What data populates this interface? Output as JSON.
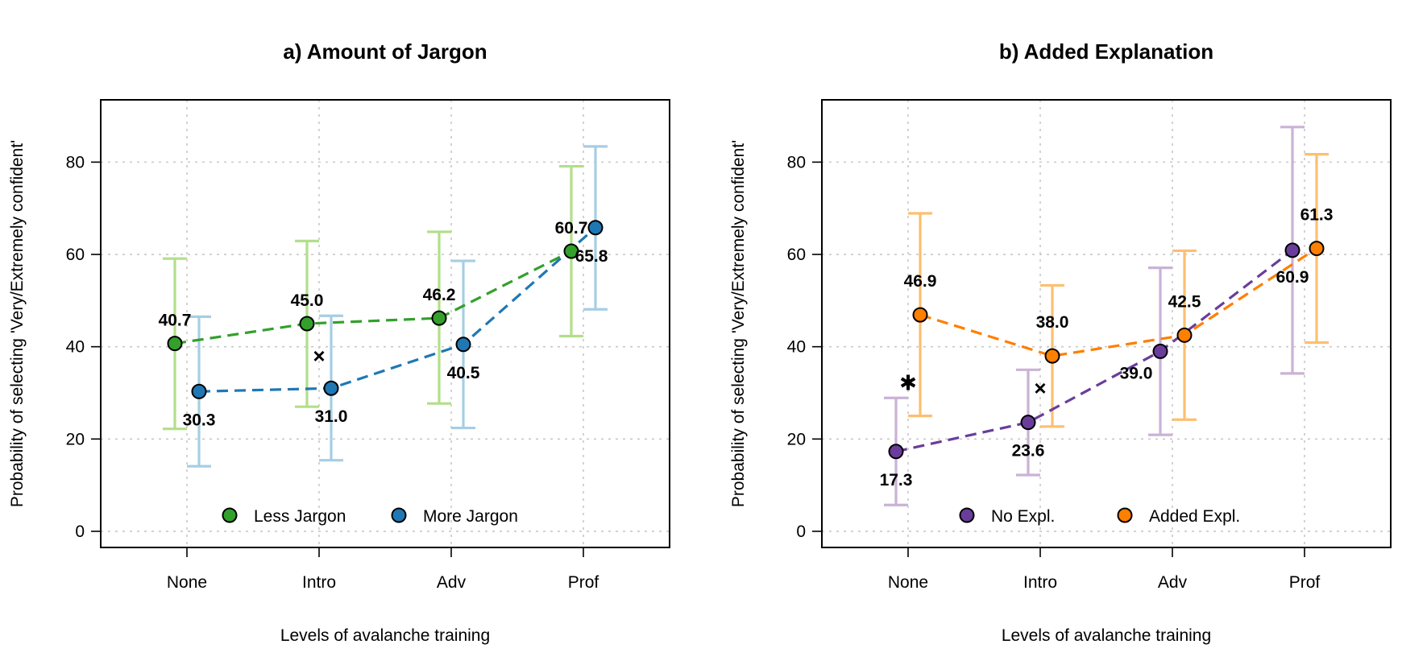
{
  "chart_data": [
    {
      "type": "line",
      "title": "a) Amount of Jargon",
      "xlabel": "Levels of avalanche training",
      "ylabel": "Probability of selecting 'Very/Extremely confident'",
      "categories": [
        "None",
        "Intro",
        "Adv",
        "Prof"
      ],
      "ylim": [
        -3.5,
        93.5
      ],
      "yticks": [
        0,
        20,
        40,
        60,
        80
      ],
      "grid": true,
      "legend_position": "bottom-center",
      "series": [
        {
          "name": "Less Jargon",
          "color": "#33a02c",
          "errorbar_color": "#b2df8a",
          "values": [
            40.7,
            45.0,
            46.2,
            60.7
          ],
          "lower": [
            22.2,
            27.0,
            27.7,
            42.3
          ],
          "upper": [
            59.1,
            62.9,
            64.9,
            79.1
          ],
          "labels": [
            "40.7",
            "45.0",
            "46.2",
            "60.7"
          ]
        },
        {
          "name": "More Jargon",
          "color": "#1f78b4",
          "errorbar_color": "#a6cee3",
          "values": [
            30.3,
            31.0,
            40.5,
            65.8
          ],
          "lower": [
            14.1,
            15.4,
            22.4,
            48.1
          ],
          "upper": [
            46.5,
            46.7,
            58.6,
            83.4
          ],
          "labels": [
            "30.3",
            "31.0",
            "40.5",
            "65.8"
          ]
        }
      ],
      "markers": [
        {
          "symbol": "×",
          "category_index": 1,
          "value": 38.0
        }
      ]
    },
    {
      "type": "line",
      "title": "b) Added Explanation",
      "xlabel": "Levels of avalanche training",
      "ylabel": "Probability of selecting 'Very/Extremely confident'",
      "categories": [
        "None",
        "Intro",
        "Adv",
        "Prof"
      ],
      "ylim": [
        -3.5,
        93.5
      ],
      "yticks": [
        0,
        20,
        40,
        60,
        80
      ],
      "grid": true,
      "legend_position": "bottom-center",
      "series": [
        {
          "name": "No Expl.",
          "color": "#6a3d9a",
          "errorbar_color": "#cab2d6",
          "values": [
            17.3,
            23.6,
            39.0,
            60.9
          ],
          "lower": [
            5.7,
            12.2,
            20.9,
            34.2
          ],
          "upper": [
            28.9,
            35.0,
            57.1,
            87.6
          ],
          "labels": [
            "17.3",
            "23.6",
            "39.0",
            "60.9"
          ]
        },
        {
          "name": "Added Expl.",
          "color": "#ff7f00",
          "errorbar_color": "#fdbf6f",
          "values": [
            46.9,
            38.0,
            42.5,
            61.3
          ],
          "lower": [
            25.0,
            22.7,
            24.2,
            40.9
          ],
          "upper": [
            68.9,
            53.3,
            60.8,
            81.7
          ],
          "labels": [
            "46.9",
            "38.0",
            "42.5",
            "61.3"
          ]
        }
      ],
      "markers": [
        {
          "symbol": "✱",
          "category_index": 0,
          "value": 32.2
        },
        {
          "symbol": "×",
          "category_index": 1,
          "value": 31.0
        }
      ]
    }
  ]
}
